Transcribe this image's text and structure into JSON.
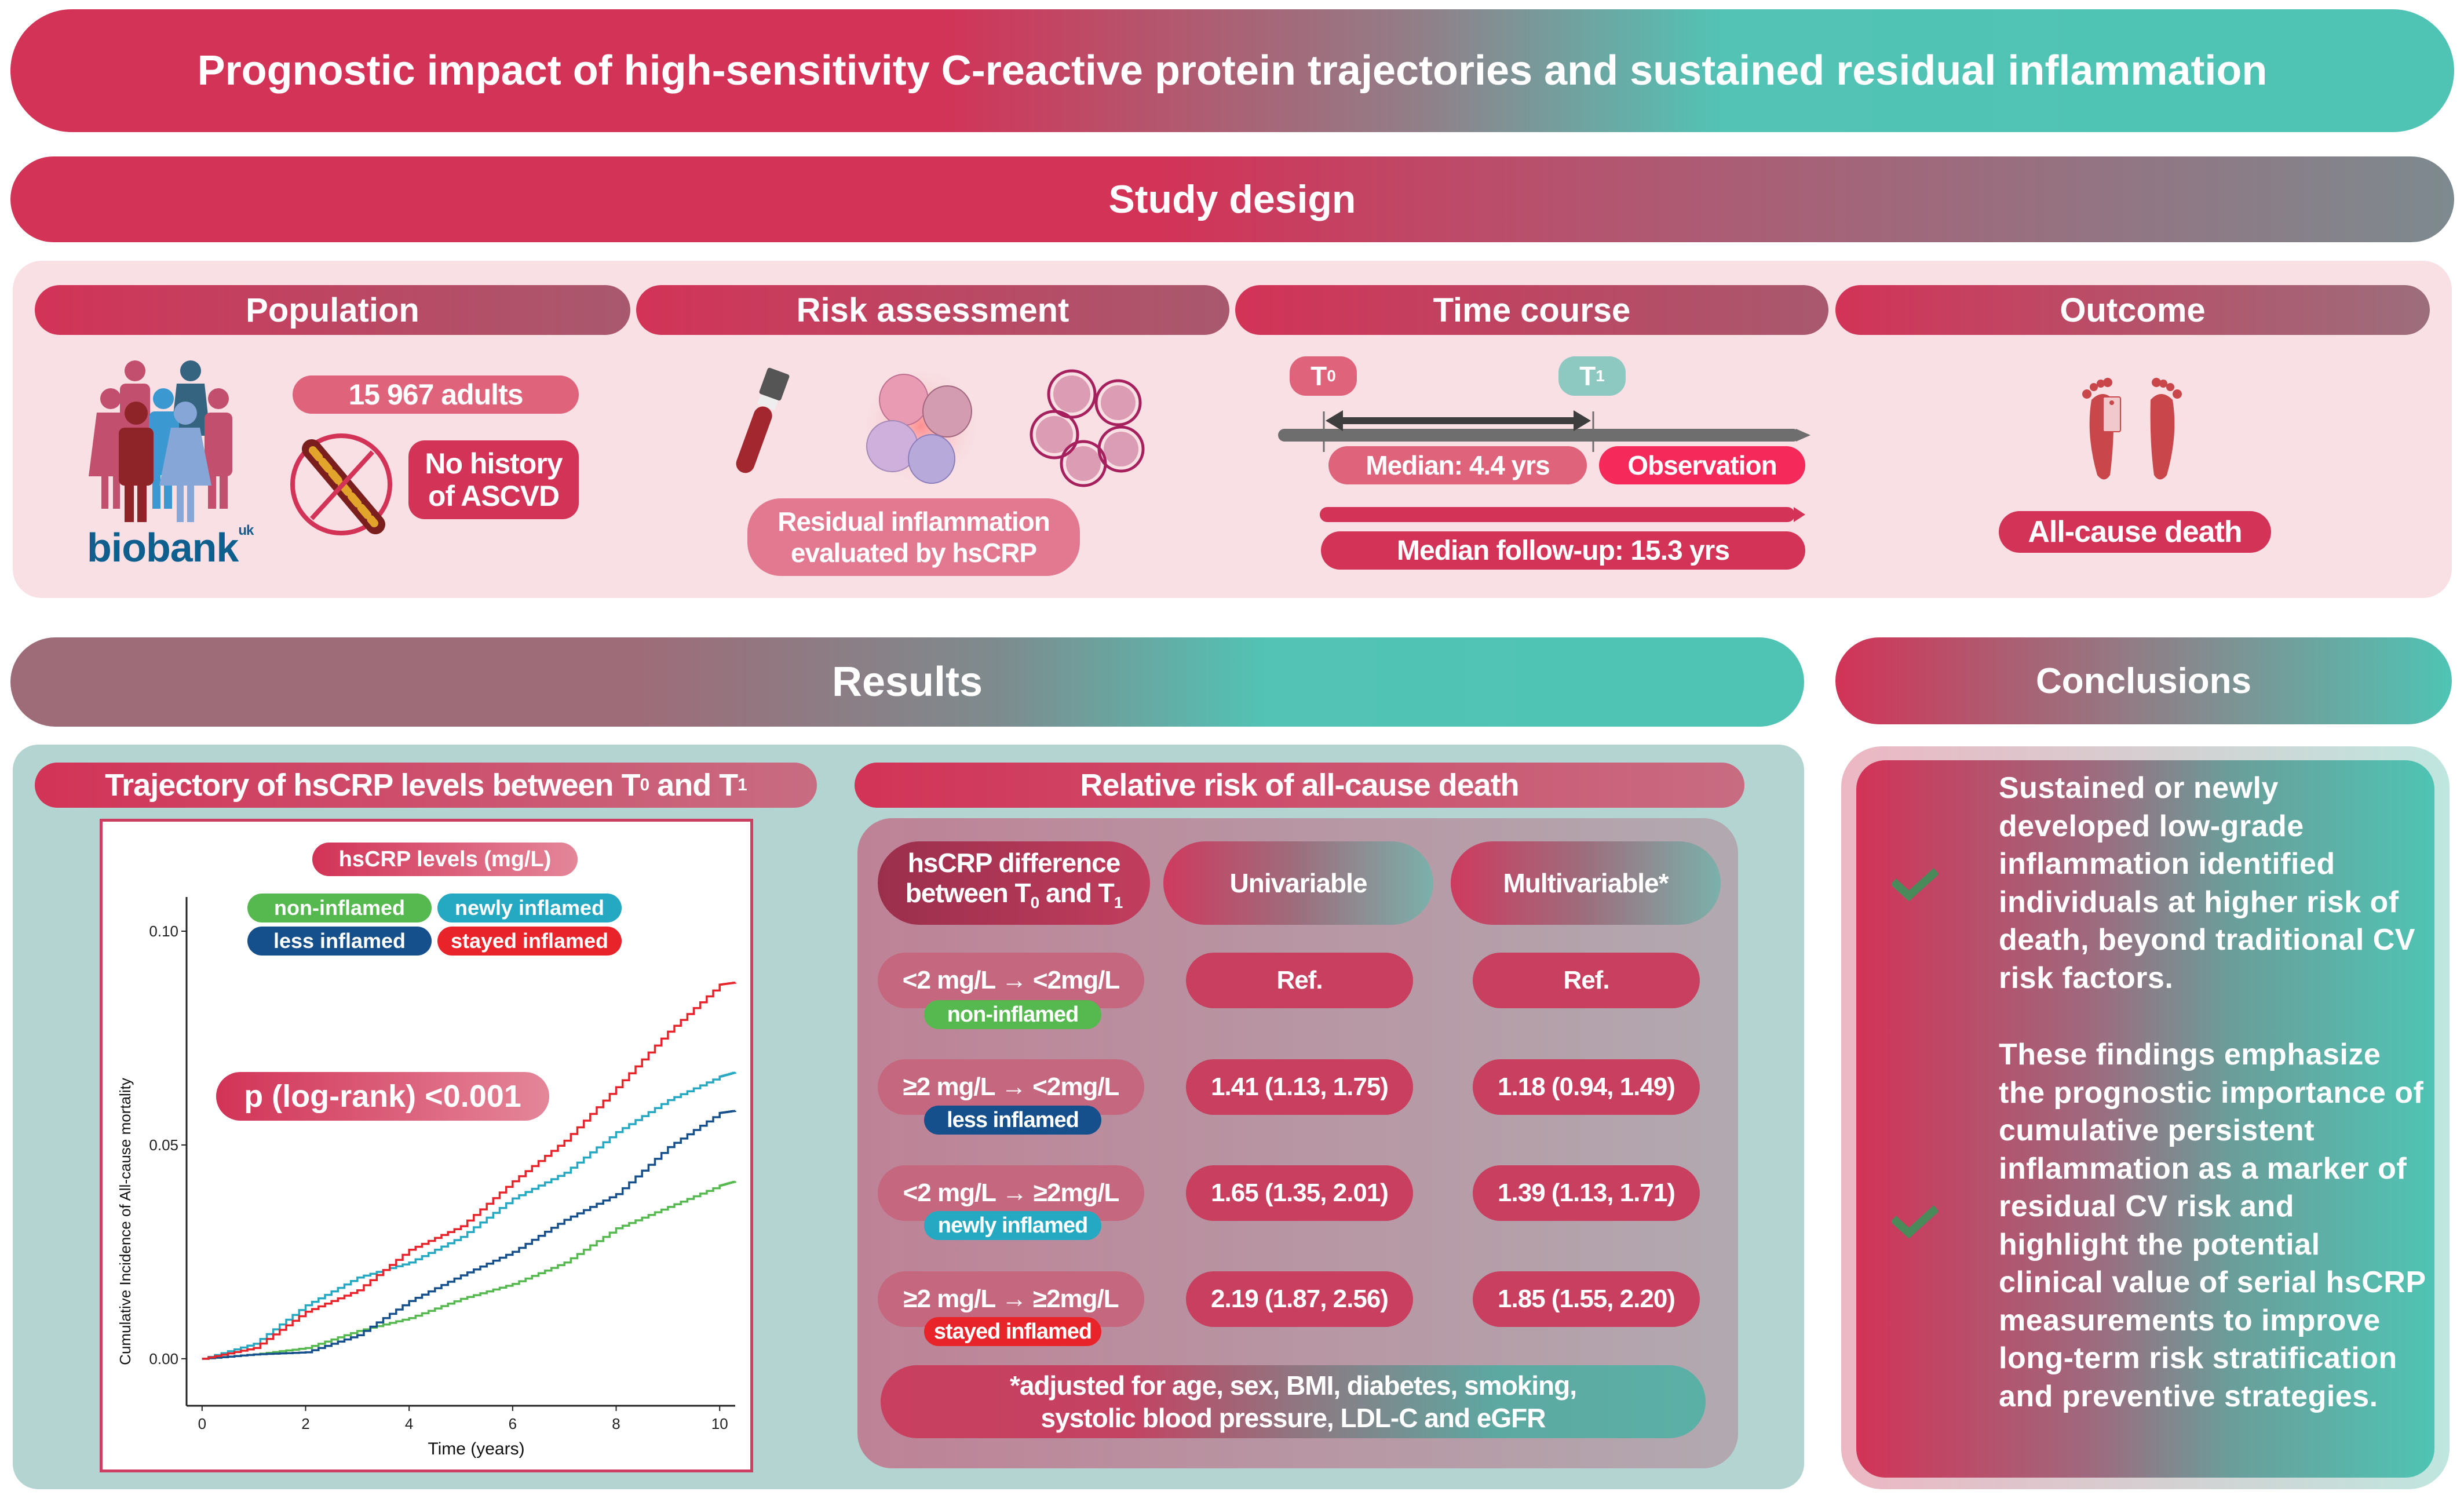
{
  "title": "Prognostic impact of high-sensitivity C-reactive protein trajectories and sustained residual inflammation",
  "study_design": {
    "header": "Study design",
    "sections": {
      "population": {
        "header": "Population",
        "adults": "15 967 adults",
        "exclusion_line1": "No history",
        "exclusion_line2": "of ASCVD",
        "logo_text": "biobank",
        "logo_superscript": "uk",
        "icons": [
          "people-group-icon",
          "no-artery-plaque-icon"
        ]
      },
      "risk_assessment": {
        "header": "Risk assessment",
        "caption_line1": "Residual inflammation",
        "caption_line2": "evaluated by hsCRP",
        "icons": [
          "blood-tube-icon",
          "inflammatory-cells-icon",
          "crp-protein-icon"
        ]
      },
      "time_course": {
        "header": "Time course",
        "t0_letter": "T",
        "t0_sub": "0",
        "t1_letter": "T",
        "t1_sub": "1",
        "median_interval": "Median: 4.4 yrs",
        "observation": "Observation",
        "median_followup": "Median follow-up: 15.3 yrs"
      },
      "outcome": {
        "header": "Outcome",
        "label": "All-cause death",
        "icons": [
          "feet-toe-tag-icon"
        ]
      }
    }
  },
  "results": {
    "header": "Results",
    "trajectory": {
      "header_prefix": "Trajectory of hsCRP levels between T",
      "header_sub0": "0",
      "header_mid": " and T",
      "header_sub1": "1",
      "legend_title": "hsCRP levels (mg/L)",
      "pvalue": "p (log-rank) <0.001"
    },
    "relative_risk": {
      "header": "Relative risk of all-cause death",
      "col_headers": {
        "difference_line1": "hsCRP difference",
        "difference_line2_prefix": "between T",
        "difference_sub0": "0",
        "difference_mid": " and T",
        "difference_sub1": "1",
        "univariable": "Univariable",
        "multivariable": "Multivariable*"
      },
      "rows": [
        {
          "change": "<2 mg/L → <2mg/L",
          "group": "non-inflamed",
          "group_color": "#56b94f",
          "univariable": "Ref.",
          "multivariable": "Ref."
        },
        {
          "change": "≥2 mg/L → <2mg/L",
          "group": "less inflamed",
          "group_color": "#15508c",
          "univariable": "1.41 (1.13, 1.75)",
          "multivariable": "1.18 (0.94, 1.49)"
        },
        {
          "change": "<2 mg/L → ≥2mg/L",
          "group": "newly inflamed",
          "group_color": "#25a8c1",
          "univariable": "1.65 (1.35, 2.01)",
          "multivariable": "1.39 (1.13, 1.71)"
        },
        {
          "change": "≥2 mg/L → ≥2mg/L",
          "group": "stayed inflamed",
          "group_color": "#e8242a",
          "univariable": "2.19 (1.87, 2.56)",
          "multivariable": "1.85 (1.55, 2.20)"
        }
      ],
      "footnote_line1": "*adjusted for age, sex, BMI, diabetes, smoking,",
      "footnote_line2": "systolic blood pressure, LDL-C and eGFR"
    }
  },
  "conclusions": {
    "header": "Conclusions",
    "points": [
      "Sustained or newly developed low-grade inflammation identified individuals at higher risk of death, beyond traditional CV risk factors.",
      "These findings emphasize the prognostic importance of cumulative persistent inflammation as a marker of residual CV risk and highlight the potential clinical value of serial hsCRP measurements to improve long-term risk stratification and preventive strategies."
    ],
    "icon": "check-icon"
  },
  "colors": {
    "brand_red": "#d23357",
    "brand_teal": "#4fc4b4",
    "check_green": "#4a8a5a"
  },
  "chart_data": {
    "type": "line",
    "title": "",
    "xlabel": "Time (years)",
    "ylabel": "Cumulative Incidence of All-cause mortality",
    "xlim": [
      -0.3,
      10.3
    ],
    "ylim": [
      -0.011,
      0.108
    ],
    "xticks": [
      0,
      2,
      4,
      6,
      8,
      10
    ],
    "xtick_labels": [
      "0",
      "2",
      "4",
      "6",
      "8",
      "10"
    ],
    "yticks": [
      0.0,
      0.05,
      0.1
    ],
    "ytick_labels": [
      "0.00",
      "0.05",
      "0.10"
    ],
    "grid": false,
    "legend_title": "hsCRP levels (mg/L)",
    "legend_position": "top",
    "annotation": "p (log-rank) <0.001",
    "x": [
      0,
      1,
      2,
      3,
      4,
      5,
      6,
      7,
      8,
      9,
      10,
      10.3
    ],
    "series": [
      {
        "name": "non-inflamed",
        "color": "#56b94f",
        "values": [
          0,
          0.001,
          0.0025,
          0.0065,
          0.0095,
          0.014,
          0.0175,
          0.0225,
          0.0305,
          0.0355,
          0.0405,
          0.0415
        ]
      },
      {
        "name": "newly inflamed",
        "color": "#25a8c1",
        "values": [
          0,
          0.0035,
          0.0125,
          0.019,
          0.0225,
          0.0285,
          0.0375,
          0.0435,
          0.053,
          0.0605,
          0.066,
          0.067
        ]
      },
      {
        "name": "less inflamed",
        "color": "#15508c",
        "values": [
          0,
          0.001,
          0.0015,
          0.0055,
          0.0135,
          0.0195,
          0.025,
          0.0325,
          0.0385,
          0.0495,
          0.0575,
          0.058
        ]
      },
      {
        "name": "stayed inflamed",
        "color": "#e8242a",
        "values": [
          0,
          0.0025,
          0.011,
          0.016,
          0.0255,
          0.031,
          0.0415,
          0.051,
          0.0635,
          0.0765,
          0.0875,
          0.088
        ]
      }
    ]
  }
}
